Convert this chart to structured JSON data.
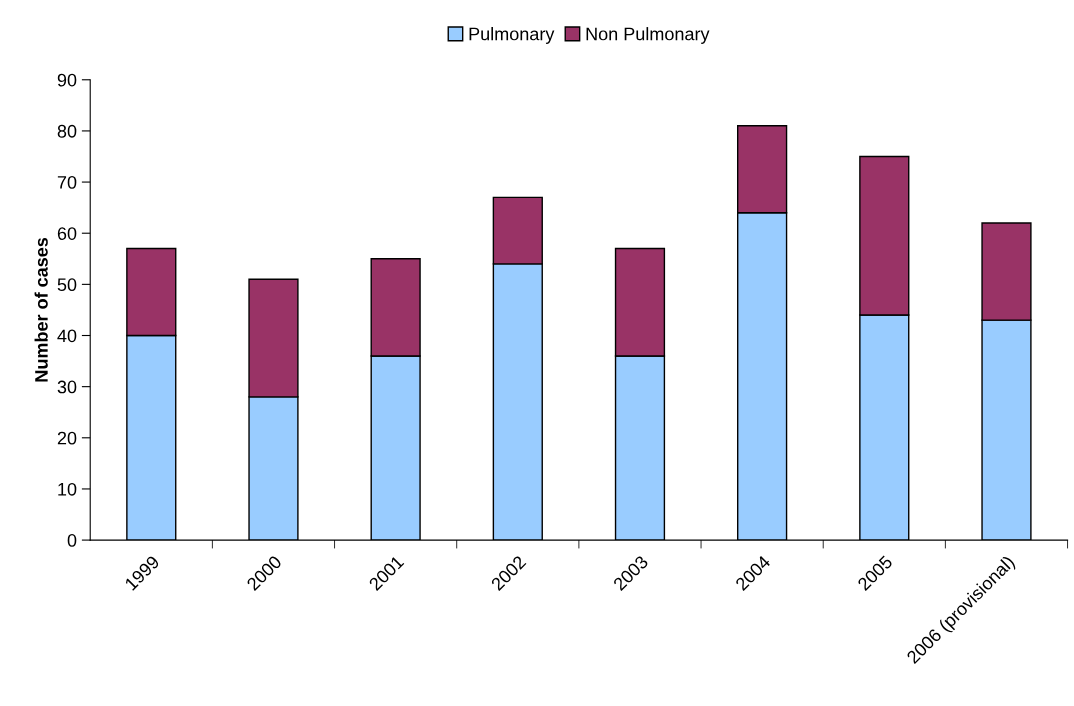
{
  "chart_data": {
    "type": "bar",
    "stacked": true,
    "ylabel": "Number of cases",
    "categories": [
      "1999",
      "2000",
      "2001",
      "2002",
      "2003",
      "2004",
      "2005",
      "2006 (provisional)"
    ],
    "series": [
      {
        "name": "Pulmonary",
        "color": "#99ccff",
        "values": [
          40,
          28,
          36,
          54,
          36,
          64,
          44,
          43
        ]
      },
      {
        "name": "Non Pulmonary",
        "color": "#993366",
        "values": [
          17,
          23,
          19,
          13,
          21,
          17,
          31,
          19
        ]
      }
    ],
    "ylim": [
      0,
      90
    ],
    "yticks": [
      0,
      10,
      20,
      30,
      40,
      50,
      60,
      70,
      80,
      90
    ],
    "grid": false,
    "legend": "top"
  }
}
